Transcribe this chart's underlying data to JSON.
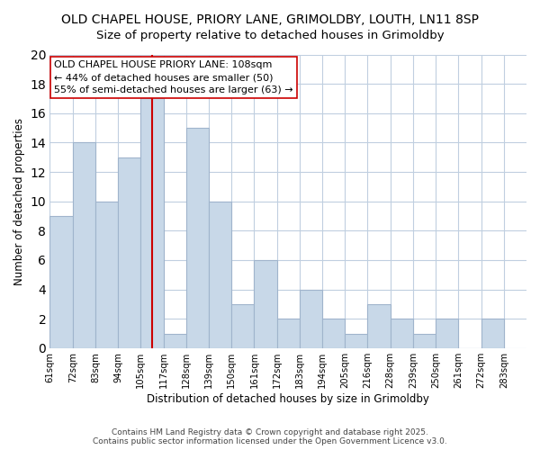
{
  "title": "OLD CHAPEL HOUSE, PRIORY LANE, GRIMOLDBY, LOUTH, LN11 8SP",
  "subtitle": "Size of property relative to detached houses in Grimoldby",
  "xlabel": "Distribution of detached houses by size in Grimoldby",
  "ylabel": "Number of detached properties",
  "bar_color": "#c8d8e8",
  "bar_edgecolor": "#a0b4cc",
  "bar_values": [
    9,
    14,
    10,
    13,
    17,
    1,
    15,
    10,
    3,
    6,
    2,
    4,
    2,
    1,
    3,
    2,
    1,
    2,
    0,
    2
  ],
  "bin_labels": [
    "61sqm",
    "72sqm",
    "83sqm",
    "94sqm",
    "105sqm",
    "117sqm",
    "128sqm",
    "139sqm",
    "150sqm",
    "161sqm",
    "172sqm",
    "183sqm",
    "194sqm",
    "205sqm",
    "216sqm",
    "228sqm",
    "239sqm",
    "250sqm",
    "261sqm",
    "272sqm",
    "283sqm"
  ],
  "ylim": [
    0,
    20
  ],
  "yticks": [
    0,
    2,
    4,
    6,
    8,
    10,
    12,
    14,
    16,
    18,
    20
  ],
  "reference_line_x": 4.5,
  "reference_line_color": "#cc0000",
  "annotation_text": "OLD CHAPEL HOUSE PRIORY LANE: 108sqm\n← 44% of detached houses are smaller (50)\n55% of semi-detached houses are larger (63) →",
  "annotation_box_edgecolor": "#cc0000",
  "annotation_fontsize": 8.0,
  "background_color": "#ffffff",
  "grid_color": "#c0cfe0",
  "footer_text": "Contains HM Land Registry data © Crown copyright and database right 2025.\nContains public sector information licensed under the Open Government Licence v3.0.",
  "title_fontsize": 10,
  "subtitle_fontsize": 9.5
}
